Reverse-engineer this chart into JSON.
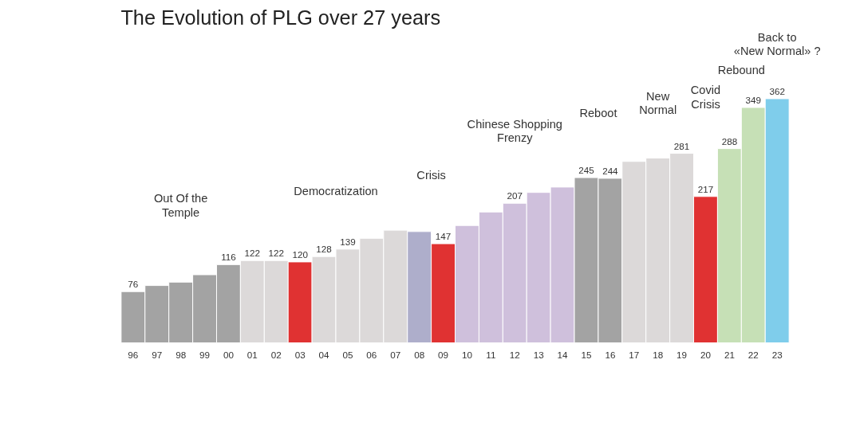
{
  "chart_data": {
    "type": "bar",
    "title": "The Evolution of PLG over 27 years",
    "categories": [
      "96",
      "97",
      "98",
      "99",
      "00",
      "01",
      "02",
      "03",
      "04",
      "05",
      "06",
      "07",
      "08",
      "09",
      "10",
      "11",
      "12",
      "13",
      "14",
      "15",
      "16",
      "17",
      "18",
      "19",
      "20",
      "21",
      "22",
      "23"
    ],
    "values": [
      76,
      85,
      90,
      101,
      116,
      122,
      122,
      120,
      128,
      139,
      155,
      167,
      165,
      147,
      174,
      194,
      207,
      223,
      231,
      245,
      244,
      269,
      274,
      281,
      217,
      288,
      349,
      362
    ],
    "colors": [
      "#a3a3a3",
      "#a3a3a3",
      "#a3a3a3",
      "#a3a3a3",
      "#a3a3a3",
      "#dcd9d9",
      "#dcd9d9",
      "#e03232",
      "#dcd9d9",
      "#dcd9d9",
      "#dcd9d9",
      "#dcd9d9",
      "#aeaecb",
      "#e03232",
      "#cfc0dc",
      "#cfc0dc",
      "#cfc0dc",
      "#cfc0dc",
      "#cfc0dc",
      "#a3a3a3",
      "#a3a3a3",
      "#dcd9d9",
      "#dcd9d9",
      "#dcd9d9",
      "#e03232",
      "#c6e0b6",
      "#c6e0b6",
      "#7fcdeb"
    ],
    "value_labels": [
      "76",
      null,
      null,
      null,
      "116",
      "122",
      "122",
      "120",
      "128",
      "139",
      null,
      null,
      null,
      "147",
      null,
      null,
      "207",
      null,
      null,
      "245",
      "244",
      null,
      null,
      "281",
      "217",
      "288",
      "349",
      "362"
    ],
    "annotations": [
      "Out Of the\nTemple",
      "Democratization",
      "Crisis",
      "Chinese Shopping\nFrenzy",
      "Reboot",
      "New\nNormal",
      "Covid\nCrisis",
      "Rebound",
      "Back to\n«New Normal» ?"
    ]
  }
}
